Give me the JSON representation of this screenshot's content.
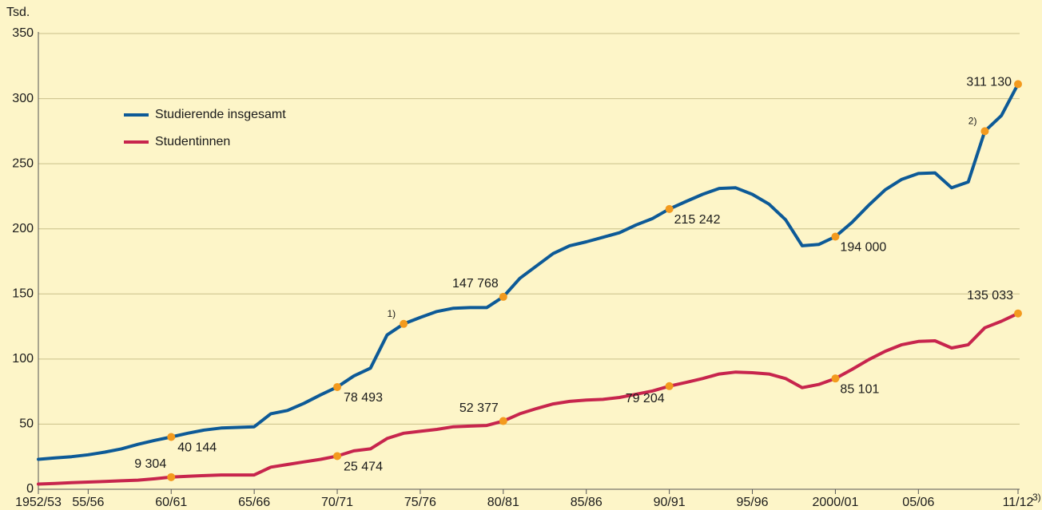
{
  "chart_data": {
    "type": "line",
    "y_unit_label": "Tsd.",
    "categories": [
      "1952/53",
      null,
      null,
      "55/56",
      null,
      null,
      null,
      null,
      "60/61",
      null,
      null,
      null,
      null,
      "65/66",
      null,
      null,
      null,
      null,
      "70/71",
      null,
      null,
      null,
      null,
      "75/76",
      null,
      null,
      null,
      null,
      "80/81",
      null,
      null,
      null,
      null,
      "85/86",
      null,
      null,
      null,
      null,
      "90/91",
      null,
      null,
      null,
      null,
      "95/96",
      null,
      null,
      null,
      null,
      "2000/01",
      null,
      null,
      null,
      null,
      "05/06",
      null,
      null,
      null,
      null,
      null,
      "11/12"
    ],
    "last_category_note": "3)",
    "ylim": [
      0,
      350
    ],
    "yticks": [
      0,
      50,
      100,
      150,
      200,
      250,
      300,
      350
    ],
    "grid": true,
    "marker_color": "#f39a1e",
    "series": [
      {
        "name": "Studierende insgesamt",
        "color": "#0d5a97",
        "values": [
          23,
          24,
          25,
          26.5,
          28.5,
          31,
          34.5,
          37.5,
          40.144,
          43,
          45.5,
          47,
          47.5,
          48,
          58,
          60.5,
          66,
          72.5,
          78.493,
          87,
          93,
          118.5,
          127,
          132,
          136.5,
          139,
          139.5,
          139.5,
          147.768,
          162,
          171.5,
          181,
          187,
          190,
          193.5,
          197,
          203,
          208,
          215.242,
          221,
          226.5,
          231,
          231.5,
          226.5,
          219,
          207,
          187,
          188,
          194,
          205,
          218,
          230,
          238,
          242.5,
          243,
          231.5,
          236,
          275,
          287,
          311.13
        ],
        "value_labels": [
          null,
          null,
          null,
          null,
          null,
          null,
          null,
          null,
          "40 144",
          null,
          null,
          null,
          null,
          null,
          null,
          null,
          null,
          null,
          "78 493",
          null,
          null,
          null,
          null,
          null,
          null,
          null,
          null,
          null,
          "147 768",
          null,
          null,
          null,
          null,
          null,
          null,
          null,
          null,
          null,
          "215 242",
          null,
          null,
          null,
          null,
          null,
          null,
          null,
          null,
          null,
          "194 000",
          null,
          null,
          null,
          null,
          null,
          null,
          null,
          null,
          null,
          null,
          "311 130"
        ],
        "markers": [
          8,
          18,
          22,
          28,
          38,
          48,
          57,
          59
        ]
      },
      {
        "name": "Studentinnen",
        "color": "#c7254d",
        "values": [
          4,
          4.5,
          5,
          5.5,
          6,
          6.5,
          7,
          8,
          9.304,
          10,
          10.5,
          11,
          11,
          11,
          17,
          19,
          21,
          23,
          25.474,
          29.5,
          31,
          39,
          43,
          44.5,
          46,
          48,
          48.5,
          49,
          52.377,
          58,
          62,
          65.5,
          67.5,
          68.5,
          69,
          70.5,
          73,
          75.5,
          79.204,
          82,
          85,
          88.5,
          90,
          89.5,
          88.5,
          85,
          78,
          80.5,
          85.101,
          92,
          99.5,
          106,
          111,
          113.5,
          114,
          108.5,
          111,
          124,
          129,
          135.033
        ],
        "value_labels": [
          null,
          null,
          null,
          null,
          null,
          null,
          null,
          null,
          "9 304",
          null,
          null,
          null,
          null,
          null,
          null,
          null,
          null,
          null,
          "25 474",
          null,
          null,
          null,
          null,
          null,
          null,
          null,
          null,
          null,
          "52 377",
          null,
          null,
          null,
          null,
          null,
          null,
          null,
          null,
          null,
          "79 204",
          null,
          null,
          null,
          null,
          null,
          null,
          null,
          null,
          null,
          "85 101",
          null,
          null,
          null,
          null,
          null,
          null,
          null,
          null,
          null,
          null,
          "135 033"
        ],
        "markers": [
          8,
          18,
          28,
          38,
          48,
          59
        ]
      }
    ],
    "annotations": [
      {
        "series": 0,
        "index": 22,
        "text": "1)"
      },
      {
        "series": 0,
        "index": 57,
        "text": "2)"
      }
    ]
  }
}
